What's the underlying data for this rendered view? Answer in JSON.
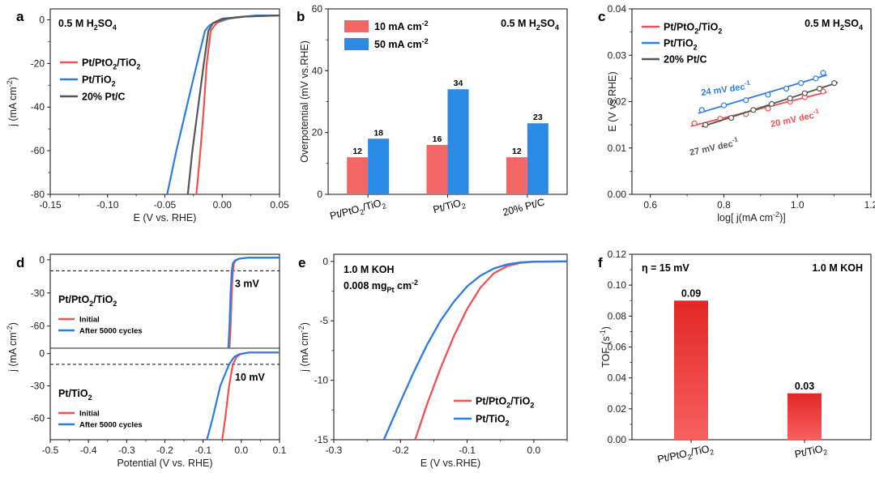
{
  "figure": {
    "panels": [
      "a",
      "b",
      "c",
      "d",
      "e",
      "f"
    ]
  },
  "chart_data": [
    {
      "id": "a",
      "type": "line",
      "annotation": "0.5 M H2SO4",
      "xlabel": "E (V vs. RHE)",
      "ylabel": "j (mA cm-2)",
      "xlim": [
        -0.15,
        0.05
      ],
      "ylim": [
        -80,
        5
      ],
      "xticks": [
        -0.15,
        -0.1,
        -0.05,
        0.0,
        0.05
      ],
      "yticks": [
        0,
        -20,
        -40,
        -60,
        -80
      ],
      "series": [
        {
          "name": "Pt/PtO2/TiO2",
          "color": "#f05050",
          "x": [
            -0.0225,
            -0.019,
            -0.016,
            -0.0135,
            -0.01,
            -0.005,
            0.005,
            0.02,
            0.05
          ],
          "y": [
            -80,
            -60,
            -40,
            -20,
            -5,
            -1.5,
            0.5,
            1.5,
            2
          ]
        },
        {
          "name": "Pt/TiO2",
          "color": "#2a7de1",
          "x": [
            -0.048,
            -0.04,
            -0.031,
            -0.022,
            -0.015,
            -0.011,
            -0.006,
            0.0,
            0.01,
            0.03,
            0.05
          ],
          "y": [
            -80,
            -60,
            -40,
            -20,
            -5,
            -2.5,
            -1,
            0,
            1,
            2,
            2
          ]
        },
        {
          "name": "20% Pt/C",
          "color": "#555555",
          "x": [
            -0.03,
            -0.026,
            -0.021,
            -0.016,
            -0.012,
            -0.008,
            0.0,
            0.02,
            0.05
          ],
          "y": [
            -80,
            -60,
            -40,
            -20,
            -5,
            -1.5,
            0.5,
            1.5,
            2
          ]
        }
      ]
    },
    {
      "id": "b",
      "type": "bar",
      "annotation": "0.5 M H2SO4",
      "ylabel": "Overpotential (mV vs.RHE)",
      "ylim": [
        0,
        60
      ],
      "yticks": [
        0,
        20,
        40,
        60
      ],
      "categories": [
        "Pt/PtO2/TiO2",
        "Pt/TiO2",
        "20% Pt/C"
      ],
      "series": [
        {
          "name": "10 mA cm-2",
          "color": "#f26666",
          "values": [
            12,
            16,
            12
          ]
        },
        {
          "name": "50 mA cm-2",
          "color": "#2a8ae4",
          "values": [
            18,
            34,
            23
          ]
        }
      ]
    },
    {
      "id": "c",
      "type": "scatter",
      "annotation": "0.5 M H2SO4",
      "xlabel": "log[ j(mA cm-2)]",
      "ylabel": "E (V vs.RHE)",
      "xlim": [
        0.55,
        1.2
      ],
      "ylim": [
        0,
        0.04
      ],
      "xticks": [
        0.6,
        0.8,
        1.0,
        1.2
      ],
      "yticks": [
        0.0,
        0.01,
        0.02,
        0.03,
        0.04
      ],
      "series": [
        {
          "name": "Pt/PtO2/TiO2",
          "color": "#f05050",
          "slope_label": "20 mV dec-1",
          "x": [
            0.72,
            0.79,
            0.86,
            0.92,
            0.98,
            1.02,
            1.07
          ],
          "y": [
            0.0153,
            0.0163,
            0.0173,
            0.0185,
            0.02,
            0.021,
            0.0222
          ]
        },
        {
          "name": "Pt/TiO2",
          "color": "#2a7de1",
          "slope_label": "24 mV dec-1",
          "x": [
            0.74,
            0.8,
            0.86,
            0.92,
            0.97,
            1.01,
            1.05,
            1.07
          ],
          "y": [
            0.0182,
            0.0192,
            0.0203,
            0.0215,
            0.0228,
            0.024,
            0.025,
            0.0262
          ]
        },
        {
          "name": "20% Pt/C",
          "color": "#555555",
          "slope_label": "27 mV dec-1",
          "x": [
            0.75,
            0.82,
            0.88,
            0.93,
            0.98,
            1.02,
            1.06,
            1.1
          ],
          "y": [
            0.015,
            0.0165,
            0.0182,
            0.0195,
            0.0207,
            0.0218,
            0.0228,
            0.024
          ]
        }
      ]
    },
    {
      "id": "d",
      "type": "line",
      "xlabel": "Potential (V vs. RHE)",
      "ylabel": "j (mA cm-2)",
      "xlim": [
        -0.5,
        0.1
      ],
      "xticks": [
        -0.5,
        -0.4,
        -0.3,
        -0.2,
        -0.1,
        0.0,
        0.1
      ],
      "subplots": [
        {
          "catalyst": "Pt/PtO2/TiO2",
          "delta": "3 mV",
          "ylim": [
            -80,
            5
          ],
          "yticks": [
            0,
            -30,
            -60
          ],
          "reference_j": -10,
          "series": [
            {
              "name": "Initial",
              "color": "#f05050",
              "x": [
                -0.031,
                -0.028,
                -0.025,
                -0.022,
                -0.019,
                -0.014,
                -0.005,
                0.02,
                0.1
              ],
              "y": [
                -80,
                -60,
                -30,
                -10,
                -3,
                -0.5,
                1,
                2,
                2
              ]
            },
            {
              "name": "After 5000 cycles",
              "color": "#2a7de1",
              "x": [
                -0.034,
                -0.031,
                -0.028,
                -0.025,
                -0.022,
                -0.016,
                -0.006,
                0.02,
                0.1
              ],
              "y": [
                -80,
                -60,
                -30,
                -10,
                -3,
                -0.5,
                1,
                2,
                2
              ]
            }
          ]
        },
        {
          "catalyst": "Pt/TiO2",
          "delta": "10 mV",
          "ylim": [
            -80,
            5
          ],
          "yticks": [
            0,
            -30,
            -60
          ],
          "reference_j": -10,
          "series": [
            {
              "name": "Initial",
              "color": "#f05050",
              "x": [
                -0.05,
                -0.042,
                -0.032,
                -0.022,
                -0.012,
                -0.002,
                0.02,
                0.1
              ],
              "y": [
                -80,
                -60,
                -30,
                -10,
                -3,
                -0.5,
                1,
                1
              ]
            },
            {
              "name": "After 5000 cycles",
              "color": "#2a7de1",
              "x": [
                -0.09,
                -0.075,
                -0.055,
                -0.032,
                -0.018,
                -0.005,
                0.02,
                0.1
              ],
              "y": [
                -80,
                -60,
                -30,
                -10,
                -3,
                -0.5,
                1,
                1
              ]
            }
          ]
        }
      ]
    },
    {
      "id": "e",
      "type": "line",
      "annotation": "1.0 M KOH",
      "annotation2": "0.008 mg",
      "annotation2_sub": "Pt",
      "annotation2_unit": "cm-2",
      "xlabel": "E (V vs.RHE)",
      "ylabel": "j (mA cm-2)",
      "xlim": [
        -0.3,
        0.05
      ],
      "ylim": [
        -15,
        0.6
      ],
      "xticks": [
        -0.3,
        -0.2,
        -0.1,
        0.0
      ],
      "yticks": [
        0,
        -5,
        -10,
        -15
      ],
      "series": [
        {
          "name": "Pt/PtO2/TiO2",
          "color": "#f05050",
          "x": [
            -0.178,
            -0.16,
            -0.14,
            -0.12,
            -0.1,
            -0.08,
            -0.06,
            -0.04,
            -0.02,
            0.0,
            0.05
          ],
          "y": [
            -15,
            -12.0,
            -9.0,
            -6.3,
            -4.0,
            -2.2,
            -1.0,
            -0.4,
            -0.12,
            -0.03,
            0
          ]
        },
        {
          "name": "Pt/TiO2",
          "color": "#2a7de1",
          "x": [
            -0.225,
            -0.2,
            -0.18,
            -0.16,
            -0.14,
            -0.12,
            -0.1,
            -0.08,
            -0.06,
            -0.04,
            -0.02,
            0.0,
            0.05
          ],
          "y": [
            -15,
            -11.8,
            -9.3,
            -7.0,
            -5.0,
            -3.4,
            -2.1,
            -1.2,
            -0.6,
            -0.25,
            -0.08,
            -0.02,
            0
          ]
        }
      ]
    },
    {
      "id": "f",
      "type": "bar",
      "annotation": "1.0 M KOH",
      "annotation_left": "η = 15 mV",
      "ylabel": "TOF (s-1)",
      "ylim": [
        0,
        0.12
      ],
      "yticks": [
        0.0,
        0.02,
        0.04,
        0.06,
        0.08,
        0.1,
        0.12
      ],
      "categories": [
        "Pt/PtO2/TiO2",
        "Pt/TiO2"
      ],
      "values": [
        0.09,
        0.03
      ],
      "labels": [
        "0.09",
        "0.03"
      ],
      "color": "#ee2a2a"
    }
  ]
}
